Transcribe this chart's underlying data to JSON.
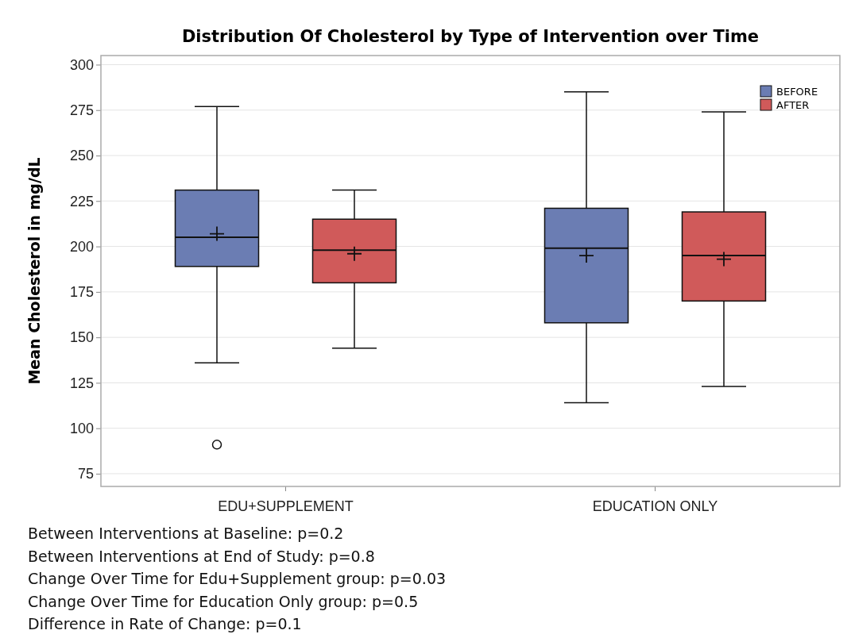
{
  "chart_data": {
    "type": "box",
    "title": "Distribution Of Cholesterol by Type of Intervention over Time",
    "ylabel": "Mean Cholesterol in mg/dL",
    "categories": [
      "EDU+SUPPLEMENT",
      "EDUCATION ONLY"
    ],
    "series": [
      {
        "name": "BEFORE",
        "color": "#6b7db3",
        "boxes": [
          {
            "low": 136,
            "q1": 189,
            "median": 205,
            "q3": 231,
            "high": 277,
            "mean": 207,
            "outliers": [
              91
            ]
          },
          {
            "low": 114,
            "q1": 158,
            "median": 199,
            "q3": 221,
            "high": 285,
            "mean": 195
          }
        ]
      },
      {
        "name": "AFTER",
        "color": "#d05a5a",
        "boxes": [
          {
            "low": 144,
            "q1": 180,
            "median": 198,
            "q3": 215,
            "high": 231,
            "mean": 196
          },
          {
            "low": 123,
            "q1": 170,
            "median": 195,
            "q3": 219,
            "high": 274,
            "mean": 193
          }
        ]
      }
    ],
    "ylim": [
      68,
      305
    ],
    "yticks": [
      75,
      100,
      125,
      150,
      175,
      200,
      225,
      250,
      275,
      300
    ],
    "grid": "y",
    "legend": "top right",
    "annotations": [
      "Between Interventions at Baseline: p=0.2",
      "Between Interventions at End of Study: p=0.8",
      "Change Over Time for Edu+Supplement group: p=0.03",
      "Change Over Time for Education Only group: p=0.5",
      "Difference in Rate of Change: p=0.1"
    ]
  }
}
